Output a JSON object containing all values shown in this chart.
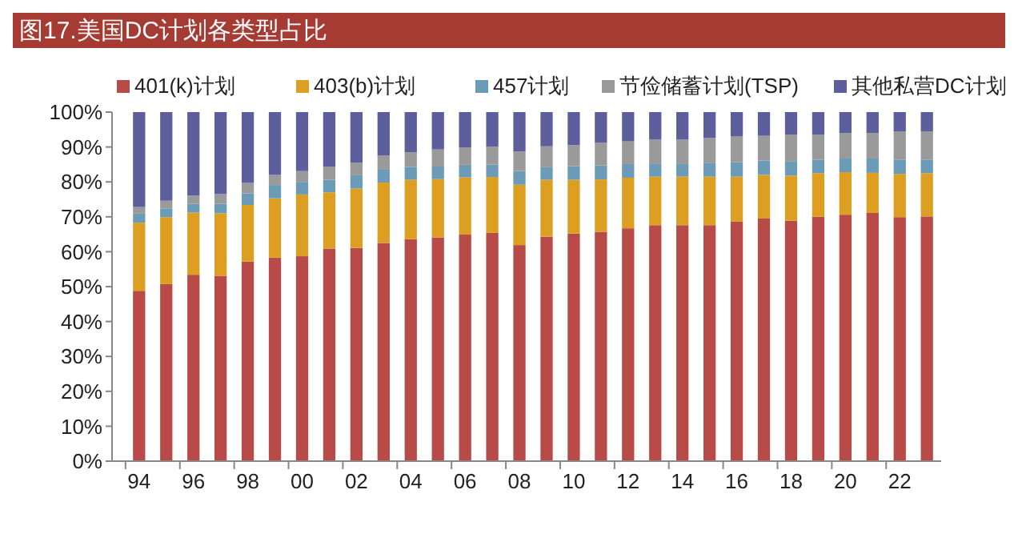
{
  "chart_data": {
    "type": "bar",
    "title": "图17.美国DC计划各类型占比",
    "stacked": true,
    "legend": "top",
    "grid": false,
    "categories": [
      "94",
      null,
      "96",
      null,
      "98",
      null,
      "00",
      null,
      "02",
      null,
      "04",
      null,
      "06",
      null,
      "08",
      null,
      "10",
      null,
      "12",
      null,
      "14",
      null,
      "16",
      null,
      "18",
      null,
      "20",
      null,
      "22",
      null
    ],
    "ylim": [
      0,
      100
    ],
    "yticks": [
      {
        "value": 0,
        "label": "0%"
      },
      {
        "value": 10,
        "label": "10%"
      },
      {
        "value": 20,
        "label": "20%"
      },
      {
        "value": 30,
        "label": "30%"
      },
      {
        "value": 40,
        "label": "40%"
      },
      {
        "value": 50,
        "label": "50%"
      },
      {
        "value": 60,
        "label": "60%"
      },
      {
        "value": 70,
        "label": "70%"
      },
      {
        "value": 80,
        "label": "80%"
      },
      {
        "value": 90,
        "label": "90%"
      },
      {
        "value": 100,
        "label": "100%"
      }
    ],
    "series": [
      {
        "name": "401(k)计划",
        "color": "#b84a47",
        "values": [
          48.8,
          50.7,
          53.4,
          53.1,
          57.2,
          58.3,
          58.7,
          60.9,
          61.1,
          62.5,
          63.6,
          64.1,
          64.9,
          65.4,
          61.9,
          64.3,
          65.2,
          65.7,
          66.7,
          67.6,
          67.6,
          67.6,
          68.6,
          69.5,
          68.9,
          70.0,
          70.6,
          71.1,
          69.9,
          70.1
        ]
      },
      {
        "name": "403(b)计划",
        "color": "#dd9f22",
        "values": [
          19.5,
          19.2,
          17.8,
          17.9,
          16.2,
          17.0,
          17.7,
          16.1,
          17.0,
          17.3,
          17.0,
          16.7,
          16.4,
          16.0,
          17.3,
          16.3,
          15.4,
          15.0,
          14.5,
          13.9,
          13.9,
          13.9,
          12.9,
          12.5,
          12.9,
          12.5,
          12.2,
          11.5,
          12.4,
          12.4
        ]
      },
      {
        "name": "457计划",
        "color": "#6b9bb6",
        "values": [
          2.6,
          2.5,
          2.5,
          2.7,
          3.3,
          3.8,
          3.6,
          3.6,
          3.8,
          3.7,
          3.7,
          3.6,
          3.6,
          3.6,
          3.9,
          3.6,
          3.9,
          4.0,
          3.9,
          3.6,
          3.6,
          4.0,
          4.1,
          4.1,
          4.0,
          3.8,
          3.9,
          4.1,
          4.1,
          3.9
        ]
      },
      {
        "name": "节俭储蓄计划(TSP)",
        "color": "#9a9a9a",
        "values": [
          1.9,
          2.2,
          2.4,
          2.8,
          3.0,
          2.9,
          3.1,
          3.7,
          3.6,
          4.1,
          4.2,
          4.9,
          4.9,
          5.1,
          5.6,
          6.0,
          6.0,
          6.5,
          6.5,
          7.0,
          7.0,
          7.1,
          7.4,
          7.1,
          7.7,
          7.2,
          7.3,
          7.3,
          8.1,
          8.1
        ]
      },
      {
        "name": "其他私营DC计划",
        "color": "#5c5f9b",
        "values": [
          27.2,
          25.4,
          23.9,
          23.5,
          20.3,
          18.0,
          16.9,
          15.7,
          14.5,
          12.4,
          11.5,
          10.7,
          10.2,
          9.9,
          11.3,
          9.8,
          9.5,
          8.8,
          8.4,
          7.9,
          7.9,
          7.4,
          7.0,
          6.8,
          6.5,
          6.5,
          6.0,
          6.0,
          5.5,
          5.5
        ]
      }
    ]
  }
}
